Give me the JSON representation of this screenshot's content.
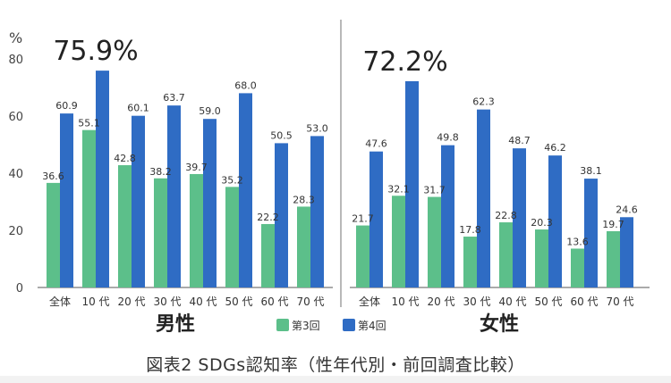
{
  "caption": "図表2 SDGs認知率（性年代別・前回調査比較）",
  "colors": {
    "series1": "#5cbf8a",
    "series2": "#2f6cc4",
    "axis": "#555555",
    "divider": "#888888"
  },
  "chart_data": [
    {
      "type": "bar",
      "panel_label": "男性",
      "unit_label": "%",
      "categories": [
        "全体",
        "10 代",
        "20 代",
        "30 代",
        "40 代",
        "50 代",
        "60 代",
        "70 代"
      ],
      "yticks": [
        0,
        20,
        40,
        60,
        80
      ],
      "ylim": [
        0,
        80
      ],
      "series": [
        {
          "name": "第3回",
          "values": [
            36.6,
            55.1,
            42.8,
            38.2,
            39.7,
            35.2,
            22.2,
            28.3
          ]
        },
        {
          "name": "第4回",
          "values": [
            60.9,
            75.9,
            60.1,
            63.7,
            59.0,
            68.0,
            50.5,
            53.0
          ]
        }
      ],
      "data_labels": [
        [
          "36.6",
          "55.1",
          "42.8",
          "38.2",
          "39.7",
          "35.2",
          "22.2",
          "28.3"
        ],
        [
          "60.9",
          "",
          "60.1",
          "63.7",
          "59.0",
          "68.0",
          "50.5",
          "53.0"
        ]
      ],
      "highlight": {
        "category_index": 1,
        "text": "75.9%"
      }
    },
    {
      "type": "bar",
      "panel_label": "女性",
      "categories": [
        "全体",
        "10 代",
        "20 代",
        "30 代",
        "40 代",
        "50 代",
        "60 代",
        "70 代"
      ],
      "ylim": [
        0,
        80
      ],
      "series": [
        {
          "name": "第3回",
          "values": [
            21.7,
            32.1,
            31.7,
            17.8,
            22.8,
            20.3,
            13.6,
            19.7
          ]
        },
        {
          "name": "第4回",
          "values": [
            47.6,
            72.2,
            49.8,
            62.3,
            48.7,
            46.2,
            38.1,
            24.6
          ]
        }
      ],
      "data_labels": [
        [
          "21.7",
          "32.1",
          "31.7",
          "17.8",
          "22.8",
          "20.3",
          "13.6",
          "19.7"
        ],
        [
          "47.6",
          "",
          "49.8",
          "62.3",
          "48.7",
          "46.2",
          "38.1",
          "24.6"
        ]
      ],
      "highlight": {
        "category_index": 1,
        "text": "72.2%"
      }
    }
  ]
}
